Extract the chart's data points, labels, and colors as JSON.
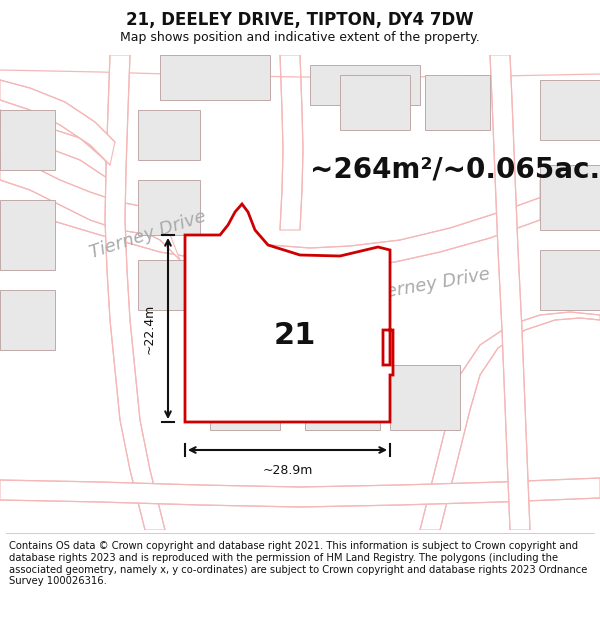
{
  "title": "21, DEELEY DRIVE, TIPTON, DY4 7DW",
  "subtitle": "Map shows position and indicative extent of the property.",
  "area_text": "~264m²/~0.065ac.",
  "number_label": "21",
  "dim_width": "~28.9m",
  "dim_height": "~22.4m",
  "street_label1": "Tierney Drive",
  "street_label2": "Tierney Drive",
  "footer": "Contains OS data © Crown copyright and database right 2021. This information is subject to Crown copyright and database rights 2023 and is reproduced with the permission of HM Land Registry. The polygons (including the associated geometry, namely x, y co-ordinates) are subject to Crown copyright and database rights 2023 Ordnance Survey 100026316.",
  "bg_color": "#ffffff",
  "map_bg": "#ffffff",
  "road_outline_color": "#f5b8b8",
  "building_fill": "#e8e8e8",
  "building_stroke": "#ccaaaa",
  "plot_fill": "#ffffff",
  "plot_stroke": "#cc0000",
  "dim_color": "#111111",
  "text_color": "#111111",
  "street_color": "#aaaaaa",
  "title_fontsize": 12,
  "subtitle_fontsize": 9,
  "area_fontsize": 20,
  "label_fontsize": 22,
  "footer_fontsize": 7.2,
  "street_fontsize": 13
}
